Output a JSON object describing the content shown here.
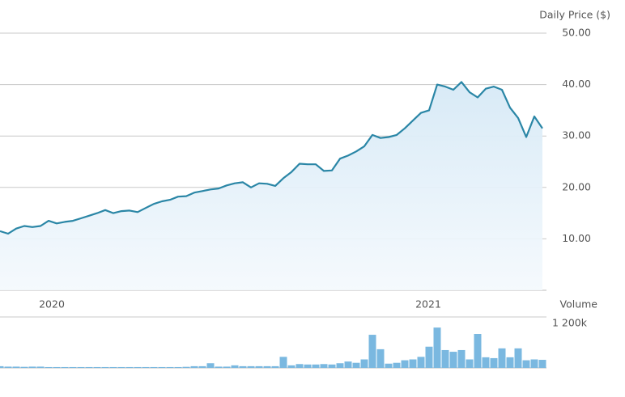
{
  "chart_data": [
    {
      "type": "line",
      "y_label": "Daily Price ($)",
      "color": "#2a86a6",
      "grid": true,
      "xlim": [
        0,
        67
      ],
      "xticks": [
        {
          "value": 6.4,
          "label": "2020"
        },
        {
          "value": 52.9,
          "label": "2021"
        }
      ],
      "ylim": [
        0,
        50
      ],
      "yticks": [
        {
          "value": 10,
          "label": "10.00"
        },
        {
          "value": 20,
          "label": "20.00"
        },
        {
          "value": 30,
          "label": "30.00"
        },
        {
          "value": 40,
          "label": "40.00"
        },
        {
          "value": 50,
          "label": "50.00"
        }
      ],
      "values": [
        11.5,
        11,
        12,
        12.5,
        12.3,
        12.5,
        13.5,
        13,
        13.3,
        13.5,
        14,
        14.5,
        15,
        15.6,
        15,
        15.4,
        15.5,
        15.2,
        16,
        16.8,
        17.3,
        17.6,
        18.2,
        18.3,
        19,
        19.3,
        19.6,
        19.8,
        20.4,
        20.8,
        21,
        20,
        20.8,
        20.7,
        20.3,
        21.8,
        23,
        24.6,
        24.5,
        24.5,
        23.2,
        23.3,
        25.6,
        26.2,
        27,
        28,
        30.2,
        29.6,
        29.8,
        30.2,
        31.5,
        33,
        34.5,
        35,
        40,
        39.6,
        39,
        40.5,
        38.5,
        37.5,
        39.2,
        39.6,
        39,
        35.5,
        33.5,
        29.8,
        33.8,
        31.5
      ]
    },
    {
      "type": "bar",
      "y_label": "Volume",
      "color": "#7ab8e0",
      "grid": true,
      "ylim": [
        0,
        1200000
      ],
      "yticks": [
        {
          "value": 1200000,
          "label": "1 200k"
        }
      ],
      "values": [
        40000,
        30000,
        30000,
        25000,
        30000,
        30000,
        20000,
        20000,
        20000,
        20000,
        20000,
        20000,
        20000,
        20000,
        20000,
        20000,
        20000,
        20000,
        20000,
        20000,
        20000,
        20000,
        20000,
        25000,
        40000,
        40000,
        110000,
        30000,
        30000,
        60000,
        40000,
        40000,
        40000,
        40000,
        40000,
        260000,
        60000,
        90000,
        80000,
        80000,
        90000,
        80000,
        110000,
        150000,
        120000,
        200000,
        780000,
        440000,
        100000,
        120000,
        180000,
        200000,
        260000,
        500000,
        950000,
        420000,
        380000,
        420000,
        200000,
        800000,
        250000,
        230000,
        460000,
        250000,
        460000,
        180000,
        200000,
        190000
      ]
    }
  ]
}
